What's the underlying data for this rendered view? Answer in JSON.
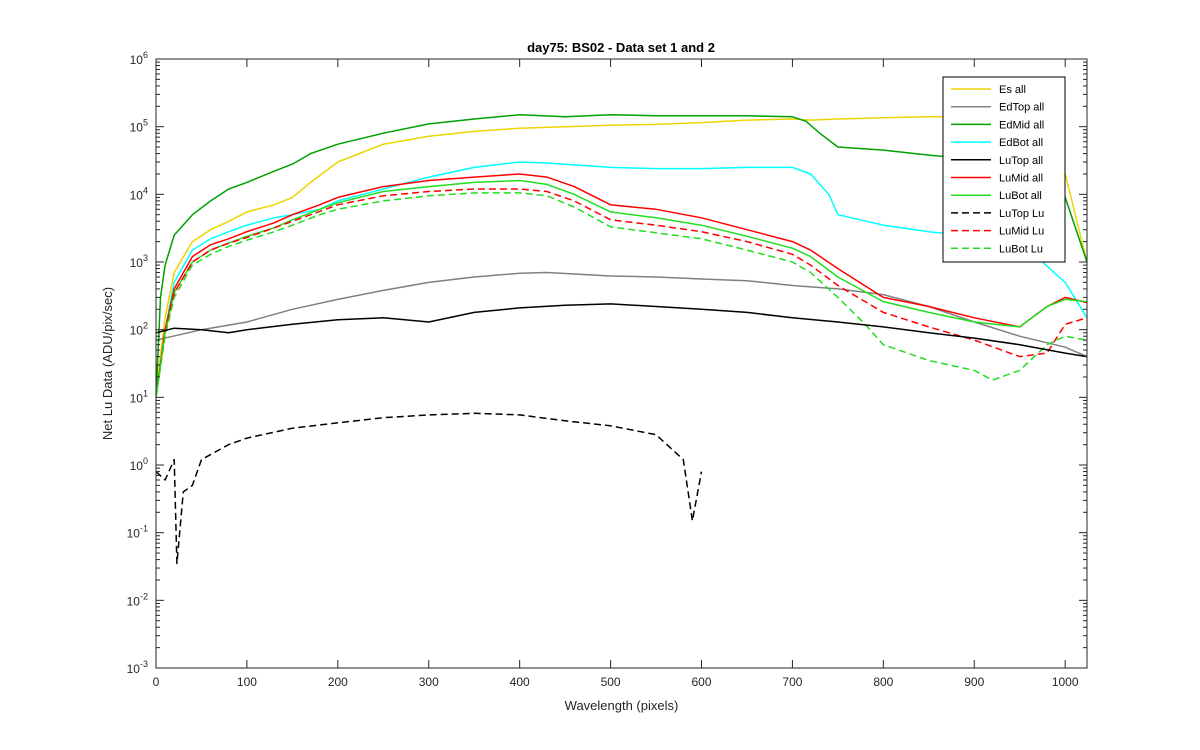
{
  "chart_data": {
    "type": "line",
    "title": "day75: BS02 - Data set 1 and 2",
    "xlabel": "Wavelength (pixels)",
    "ylabel": "Net Lu Data (ADU/pix/sec)",
    "xlim": [
      0,
      1024
    ],
    "ylim": [
      0.001,
      1000000
    ],
    "yscale": "log",
    "grid": false,
    "legend_location": "top-right",
    "x_ticks": [
      0,
      100,
      200,
      300,
      400,
      500,
      600,
      700,
      800,
      900,
      1000
    ],
    "x_tick_labels": [
      "0",
      "100",
      "200",
      "300",
      "400",
      "500",
      "600",
      "700",
      "800",
      "900",
      "1000"
    ],
    "y_ticks": [
      0.001,
      0.01,
      0.1,
      1,
      10,
      100,
      1000,
      10000,
      100000,
      1000000
    ],
    "y_tick_labels": [
      {
        "base": "10",
        "exp": "-3"
      },
      {
        "base": "10",
        "exp": "-2"
      },
      {
        "base": "10",
        "exp": "-1"
      },
      {
        "base": "10",
        "exp": "0"
      },
      {
        "base": "10",
        "exp": "1"
      },
      {
        "base": "10",
        "exp": "2"
      },
      {
        "base": "10",
        "exp": "3"
      },
      {
        "base": "10",
        "exp": "4"
      },
      {
        "base": "10",
        "exp": "5"
      },
      {
        "base": "10",
        "exp": "6"
      }
    ],
    "series": [
      {
        "name": "Es  all",
        "color": "#EDD400",
        "dash": "solid",
        "x": [
          0,
          10,
          20,
          40,
          60,
          80,
          100,
          130,
          150,
          170,
          200,
          250,
          300,
          350,
          400,
          450,
          500,
          550,
          600,
          650,
          700,
          720,
          750,
          800,
          850,
          900,
          950,
          985,
          1000,
          1024
        ],
        "y": [
          12,
          150,
          700,
          2000,
          3000,
          4000,
          5500,
          7000,
          9000,
          15000,
          30000,
          55000,
          72000,
          85000,
          95000,
          100000,
          105000,
          108000,
          115000,
          125000,
          130000,
          125000,
          130000,
          135000,
          140000,
          140000,
          140000,
          130000,
          20000,
          1000
        ]
      },
      {
        "name": "EdTop  all",
        "color": "#808080",
        "dash": "solid",
        "x": [
          0,
          50,
          100,
          150,
          200,
          250,
          300,
          350,
          400,
          430,
          500,
          550,
          600,
          650,
          700,
          750,
          800,
          850,
          900,
          950,
          1000,
          1024
        ],
        "y": [
          70,
          100,
          130,
          200,
          280,
          380,
          500,
          600,
          680,
          700,
          620,
          600,
          560,
          530,
          450,
          400,
          330,
          220,
          130,
          80,
          55,
          40
        ]
      },
      {
        "name": "EdMid  all",
        "color": "#00A000",
        "dash": "solid",
        "x": [
          0,
          5,
          10,
          20,
          40,
          60,
          80,
          100,
          130,
          150,
          170,
          200,
          250,
          300,
          350,
          400,
          450,
          500,
          550,
          600,
          650,
          700,
          715,
          730,
          750,
          800,
          850,
          900,
          950,
          1000,
          1024
        ],
        "y": [
          10,
          300,
          900,
          2500,
          5000,
          8000,
          12000,
          15000,
          22000,
          28000,
          40000,
          55000,
          80000,
          110000,
          130000,
          150000,
          140000,
          150000,
          145000,
          145000,
          145000,
          140000,
          120000,
          80000,
          50000,
          45000,
          38000,
          33000,
          30000,
          9000,
          1000
        ]
      },
      {
        "name": "EdBot  all",
        "color": "#00FFFF",
        "dash": "solid",
        "x": [
          0,
          10,
          20,
          40,
          60,
          80,
          100,
          130,
          150,
          180,
          200,
          250,
          300,
          350,
          400,
          430,
          500,
          550,
          600,
          650,
          700,
          720,
          740,
          750,
          800,
          850,
          900,
          950,
          1000,
          1024
        ],
        "y": [
          10,
          100,
          500,
          1500,
          2200,
          2800,
          3500,
          4500,
          5000,
          6000,
          8000,
          12000,
          18000,
          25000,
          30000,
          29000,
          25000,
          24000,
          24000,
          25000,
          25000,
          20000,
          10000,
          5000,
          3500,
          2800,
          2400,
          2000,
          500,
          150
        ]
      },
      {
        "name": "LuTop  all",
        "color": "#000000",
        "dash": "solid",
        "x": [
          0,
          20,
          50,
          80,
          100,
          150,
          200,
          250,
          300,
          350,
          400,
          450,
          500,
          550,
          600,
          650,
          700,
          750,
          800,
          850,
          900,
          950,
          1000,
          1024
        ],
        "y": [
          90,
          105,
          100,
          90,
          100,
          120,
          140,
          150,
          130,
          180,
          210,
          230,
          240,
          220,
          200,
          180,
          150,
          130,
          110,
          90,
          75,
          60,
          45,
          40
        ]
      },
      {
        "name": "LuMid  all",
        "color": "#FF0000",
        "dash": "solid",
        "x": [
          0,
          10,
          20,
          40,
          60,
          80,
          100,
          130,
          150,
          180,
          200,
          250,
          300,
          350,
          400,
          430,
          460,
          500,
          550,
          600,
          650,
          700,
          720,
          750,
          800,
          850,
          900,
          950,
          980,
          1000,
          1024
        ],
        "y": [
          10,
          100,
          400,
          1200,
          1800,
          2200,
          2800,
          3800,
          5000,
          7000,
          9000,
          13000,
          16000,
          18000,
          20000,
          18000,
          13000,
          7000,
          6000,
          4500,
          3000,
          2000,
          1500,
          800,
          300,
          220,
          150,
          110,
          220,
          300,
          250
        ]
      },
      {
        "name": "LuBot  all",
        "color": "#22DD22",
        "dash": "solid",
        "x": [
          0,
          10,
          20,
          40,
          60,
          80,
          100,
          130,
          150,
          180,
          200,
          250,
          300,
          350,
          400,
          430,
          460,
          500,
          550,
          600,
          650,
          700,
          720,
          750,
          800,
          850,
          900,
          950,
          980,
          1000,
          1024
        ],
        "y": [
          10,
          90,
          350,
          1000,
          1500,
          1900,
          2400,
          3200,
          4200,
          6000,
          7500,
          11000,
          13000,
          15000,
          16000,
          14000,
          10000,
          5500,
          4500,
          3500,
          2400,
          1600,
          1200,
          600,
          260,
          180,
          130,
          110,
          220,
          280,
          260
        ]
      },
      {
        "name": "LuTop  Lu",
        "color": "#000000",
        "dash": "dashed",
        "x": [
          0,
          10,
          20,
          23,
          30,
          40,
          50,
          80,
          100,
          150,
          200,
          250,
          300,
          350,
          400,
          450,
          500,
          550,
          580,
          590,
          600
        ],
        "y": [
          0.8,
          0.6,
          1.2,
          0.035,
          0.4,
          0.5,
          1.2,
          2,
          2.5,
          3.5,
          4.2,
          5,
          5.5,
          5.8,
          5.5,
          4.5,
          3.8,
          2.8,
          1.2,
          0.15,
          0.8
        ]
      },
      {
        "name": "LuMid  Lu",
        "color": "#FF0000",
        "dash": "dashed",
        "x": [
          0,
          10,
          20,
          40,
          60,
          80,
          100,
          130,
          150,
          180,
          200,
          250,
          300,
          350,
          400,
          430,
          460,
          500,
          550,
          600,
          650,
          700,
          720,
          750,
          800,
          850,
          900,
          950,
          980,
          1000,
          1024
        ],
        "y": [
          10,
          90,
          350,
          1000,
          1500,
          1900,
          2300,
          3200,
          4000,
          5600,
          7000,
          9500,
          11000,
          12000,
          12000,
          11000,
          8000,
          4200,
          3500,
          2800,
          2000,
          1300,
          900,
          450,
          180,
          110,
          70,
          40,
          45,
          120,
          150
        ]
      },
      {
        "name": "LuBot  Lu",
        "color": "#22DD22",
        "dash": "dashed",
        "x": [
          0,
          10,
          20,
          40,
          60,
          80,
          100,
          130,
          150,
          180,
          200,
          250,
          300,
          350,
          400,
          430,
          460,
          500,
          550,
          600,
          650,
          700,
          720,
          750,
          780,
          800,
          850,
          900,
          920,
          950,
          980,
          1000,
          1024
        ],
        "y": [
          10,
          80,
          300,
          900,
          1300,
          1700,
          2100,
          2800,
          3500,
          5000,
          6000,
          8000,
          9500,
          10500,
          10500,
          9500,
          6500,
          3300,
          2700,
          2200,
          1500,
          1000,
          700,
          300,
          120,
          60,
          35,
          25,
          18,
          25,
          60,
          80,
          70
        ]
      }
    ]
  }
}
